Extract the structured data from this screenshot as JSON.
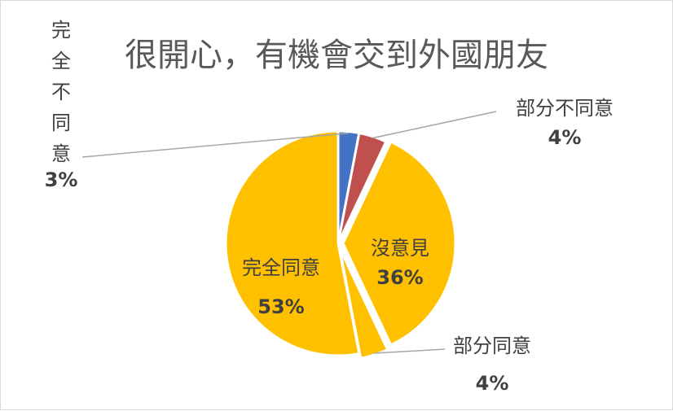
{
  "chart_data": {
    "type": "pie",
    "title": "很開心，有機會交到外國朋友",
    "slices": [
      {
        "name": "完全不同意",
        "value": 3,
        "label": "3%",
        "color": "#4472C4"
      },
      {
        "name": "部分不同意",
        "value": 4,
        "label": "4%",
        "color": "#C0504D"
      },
      {
        "name": "沒意見",
        "value": 36,
        "label": "36%",
        "color": "#FFC000"
      },
      {
        "name": "部分同意",
        "value": 4,
        "label": "4%",
        "color": "#FFC000"
      },
      {
        "name": "完全同意",
        "value": 53,
        "label": "53%",
        "color": "#FFC000"
      }
    ],
    "legend": "none",
    "data_labels": "category-and-percent"
  }
}
